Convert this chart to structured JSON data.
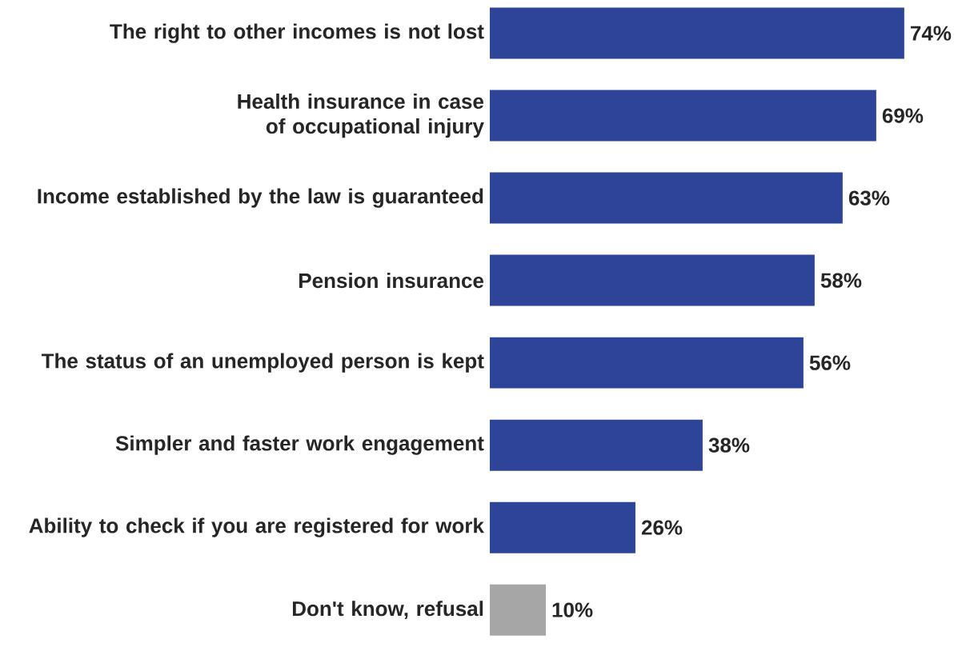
{
  "chart_data": {
    "type": "bar",
    "orientation": "horizontal",
    "categories": [
      "The right to other incomes is not lost",
      "Health insurance in case of occupational injury",
      "Income established by the law is guaranteed",
      "Pension insurance",
      "The status of an unemployed person is kept",
      "Simpler and faster work engagement",
      "Ability to check if you are registered for work",
      "Don't know, refusal"
    ],
    "values": [
      74,
      69,
      63,
      58,
      56,
      38,
      26,
      10
    ],
    "value_labels": [
      "74%",
      "69%",
      "63%",
      "58%",
      "56%",
      "38%",
      "26%",
      "10%"
    ],
    "colors": [
      "#2e4498",
      "#2e4498",
      "#2e4498",
      "#2e4498",
      "#2e4498",
      "#2e4498",
      "#2e4498",
      "#a6a6a6"
    ]
  }
}
